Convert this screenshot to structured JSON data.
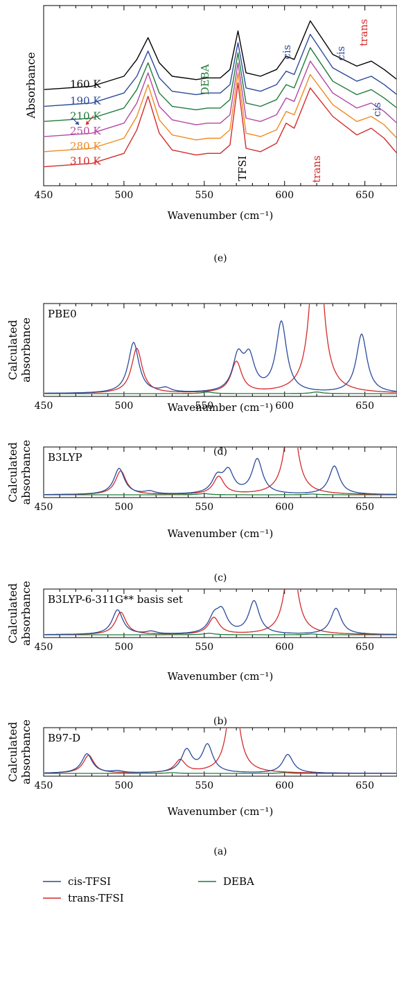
{
  "colors": {
    "cis": "#2a4a9a",
    "trans": "#d42a2a",
    "deba": "#1f7a3a"
  },
  "legend": {
    "cis": "cis-TFSI",
    "trans": "trans-TFSI",
    "deba": "DEBA"
  },
  "chart_data": [
    {
      "id": "e",
      "type": "line",
      "panel_caption": "(e)",
      "xlabel": "Wavenumber (cm⁻¹)",
      "ylabel": "Absorbance",
      "xlim": [
        450,
        670
      ],
      "xticks": [
        450,
        500,
        550,
        600,
        650
      ],
      "annotations": {
        "cis_left": "cis",
        "trans_left": "trans",
        "deba": "DEBA",
        "tfsi": "TFSI",
        "cis_600": "cis",
        "cis_650": "cis",
        "trans_right": "trans"
      },
      "series": [
        {
          "name": "160 K",
          "color": "#000000",
          "x": [
            450,
            480,
            500,
            508,
            515,
            522,
            530,
            545,
            552,
            560,
            566,
            571,
            576,
            585,
            595,
            601,
            606,
            616,
            630,
            645,
            654,
            662,
            670
          ],
          "y": [
            0.54,
            0.56,
            0.62,
            0.72,
            0.85,
            0.7,
            0.62,
            0.6,
            0.61,
            0.61,
            0.66,
            0.89,
            0.64,
            0.62,
            0.66,
            0.74,
            0.72,
            0.95,
            0.75,
            0.68,
            0.71,
            0.66,
            0.6
          ]
        },
        {
          "name": "190 K",
          "color": "#2a4a9a",
          "x": [
            450,
            480,
            500,
            508,
            515,
            522,
            530,
            545,
            552,
            560,
            566,
            571,
            576,
            585,
            595,
            601,
            606,
            616,
            630,
            645,
            654,
            662,
            670
          ],
          "y": [
            0.44,
            0.46,
            0.52,
            0.62,
            0.77,
            0.61,
            0.53,
            0.51,
            0.52,
            0.52,
            0.57,
            0.82,
            0.55,
            0.53,
            0.57,
            0.65,
            0.63,
            0.87,
            0.67,
            0.59,
            0.62,
            0.57,
            0.51
          ]
        },
        {
          "name": "210 K",
          "color": "#1f7a3a",
          "x": [
            450,
            480,
            500,
            508,
            515,
            522,
            530,
            545,
            552,
            560,
            566,
            571,
            576,
            585,
            595,
            601,
            606,
            616,
            630,
            645,
            654,
            662,
            670
          ],
          "y": [
            0.35,
            0.37,
            0.43,
            0.54,
            0.7,
            0.52,
            0.44,
            0.42,
            0.43,
            0.43,
            0.48,
            0.76,
            0.46,
            0.44,
            0.48,
            0.57,
            0.55,
            0.79,
            0.59,
            0.51,
            0.54,
            0.49,
            0.43
          ]
        },
        {
          "name": "250 K",
          "color": "#b546a3",
          "x": [
            450,
            480,
            500,
            508,
            515,
            522,
            530,
            545,
            552,
            560,
            566,
            571,
            576,
            585,
            595,
            601,
            606,
            616,
            630,
            645,
            654,
            662,
            670
          ],
          "y": [
            0.26,
            0.28,
            0.34,
            0.46,
            0.64,
            0.44,
            0.36,
            0.33,
            0.34,
            0.34,
            0.39,
            0.7,
            0.37,
            0.35,
            0.39,
            0.49,
            0.47,
            0.71,
            0.52,
            0.43,
            0.46,
            0.41,
            0.34
          ]
        },
        {
          "name": "280 K",
          "color": "#ef8a1f",
          "x": [
            450,
            480,
            500,
            508,
            515,
            522,
            530,
            545,
            552,
            560,
            566,
            571,
            576,
            585,
            595,
            601,
            606,
            616,
            630,
            645,
            654,
            662,
            670
          ],
          "y": [
            0.17,
            0.19,
            0.25,
            0.38,
            0.57,
            0.36,
            0.27,
            0.24,
            0.25,
            0.25,
            0.3,
            0.64,
            0.28,
            0.26,
            0.3,
            0.41,
            0.39,
            0.63,
            0.45,
            0.35,
            0.38,
            0.33,
            0.25
          ]
        },
        {
          "name": "310 K",
          "color": "#d42a2a",
          "x": [
            450,
            480,
            500,
            508,
            515,
            522,
            530,
            545,
            552,
            560,
            566,
            571,
            576,
            585,
            595,
            601,
            606,
            616,
            630,
            645,
            654,
            662,
            670
          ],
          "y": [
            0.08,
            0.1,
            0.16,
            0.3,
            0.5,
            0.28,
            0.18,
            0.15,
            0.16,
            0.16,
            0.21,
            0.58,
            0.19,
            0.17,
            0.22,
            0.34,
            0.31,
            0.55,
            0.38,
            0.27,
            0.31,
            0.25,
            0.16
          ]
        }
      ]
    },
    {
      "id": "d",
      "type": "line",
      "panel_caption": "(d)",
      "method_label": "PBE0",
      "xlabel": "Wavenumber (cm⁻¹)",
      "ylabel": "Calculated absorbance",
      "xlim": [
        450,
        670
      ],
      "xticks": [
        450,
        500,
        550,
        600,
        650
      ],
      "peaks": {
        "cis": [
          [
            506,
            0.62,
            4
          ],
          [
            526,
            0.05,
            4
          ],
          [
            571,
            0.42,
            4
          ],
          [
            578,
            0.4,
            4
          ],
          [
            598,
            0.86,
            4
          ],
          [
            648,
            0.72,
            4
          ]
        ],
        "trans": [
          [
            508,
            0.55,
            4
          ],
          [
            570,
            0.38,
            4
          ],
          [
            620,
            2.5,
            4
          ]
        ],
        "deba": [
          [
            552,
            0.02,
            4
          ],
          [
            620,
            0.02,
            4
          ]
        ]
      }
    },
    {
      "id": "c",
      "type": "line",
      "panel_caption": "(c)",
      "method_label": "B3LYP",
      "xlabel": "Wavenumber (cm⁻¹)",
      "ylabel": "Calculated absorbance",
      "xlim": [
        450,
        670
      ],
      "xticks": [
        450,
        500,
        550,
        600,
        650
      ],
      "peaks": {
        "cis": [
          [
            497,
            0.66,
            4
          ],
          [
            516,
            0.07,
            4
          ],
          [
            558,
            0.4,
            4
          ],
          [
            565,
            0.55,
            4
          ],
          [
            583,
            0.88,
            4
          ],
          [
            631,
            0.72,
            4
          ]
        ],
        "trans": [
          [
            498,
            0.6,
            4
          ],
          [
            559,
            0.45,
            4
          ],
          [
            604,
            2.5,
            4
          ]
        ],
        "deba": [
          [
            550,
            0.03,
            4
          ],
          [
            617,
            0.02,
            4
          ]
        ]
      }
    },
    {
      "id": "b",
      "type": "line",
      "panel_caption": "(b)",
      "method_label": "B3LYP-6-311G** basis set",
      "xlabel": "Wavenumber (cm⁻¹)",
      "ylabel": "Calculated absorbance",
      "xlim": [
        450,
        670
      ],
      "xticks": [
        450,
        500,
        550,
        600,
        650
      ],
      "peaks": {
        "cis": [
          [
            496,
            0.66,
            4
          ],
          [
            517,
            0.07,
            4
          ],
          [
            556,
            0.4,
            4
          ],
          [
            561,
            0.55,
            4
          ],
          [
            581,
            0.88,
            4
          ],
          [
            632,
            0.7,
            4
          ]
        ],
        "trans": [
          [
            498,
            0.6,
            4
          ],
          [
            556,
            0.45,
            4
          ],
          [
            604,
            2.5,
            4
          ]
        ],
        "deba": [
          [
            553,
            0.04,
            4
          ],
          [
            617,
            0.02,
            4
          ]
        ]
      }
    },
    {
      "id": "a",
      "type": "line",
      "panel_caption": "(a)",
      "method_label": "B97-D",
      "xlabel": "Wavenumber (cm⁻¹)",
      "ylabel": "Calculated absorbance",
      "xlim": [
        450,
        670
      ],
      "xticks": [
        450,
        500,
        550,
        600,
        650
      ],
      "peaks": {
        "cis": [
          [
            477,
            0.52,
            4
          ],
          [
            496,
            0.05,
            4
          ],
          [
            539,
            0.6,
            4
          ],
          [
            552,
            0.74,
            4
          ],
          [
            602,
            0.5,
            4
          ]
        ],
        "trans": [
          [
            478,
            0.48,
            4
          ],
          [
            535,
            0.34,
            4
          ],
          [
            568,
            2.5,
            4
          ]
        ],
        "deba": [
          [
            530,
            0.02,
            4
          ],
          [
            600,
            0.02,
            4
          ]
        ]
      }
    }
  ]
}
